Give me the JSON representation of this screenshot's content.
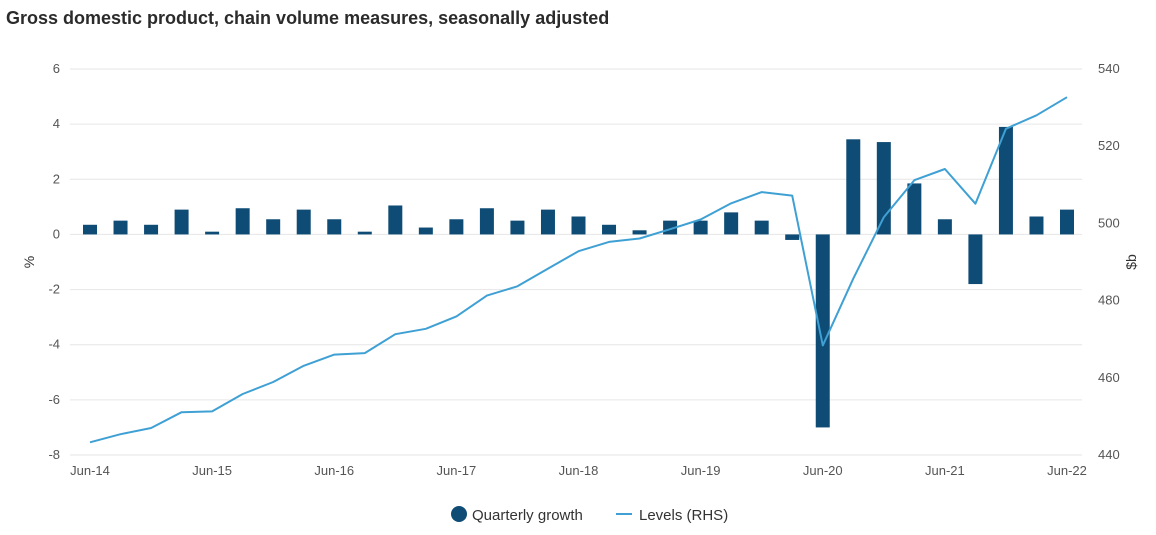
{
  "chart_data": {
    "type": "bar+line",
    "title": "Gross domestic product, chain volume measures, seasonally adjusted",
    "ylabel_left": "%",
    "ylabel_right": "$b",
    "ylim_left": [
      -8,
      6
    ],
    "ylim_right": [
      440,
      540
    ],
    "yticks_left": [
      "6",
      "4",
      "2",
      "0",
      "-2",
      "-4",
      "-6",
      "-8"
    ],
    "yticks_right": [
      "540",
      "520",
      "500",
      "480",
      "460",
      "440"
    ],
    "x_tick_labels": [
      "Jun-14",
      "Jun-15",
      "Jun-16",
      "Jun-17",
      "Jun-18",
      "Jun-19",
      "Jun-20",
      "Jun-21",
      "Jun-22"
    ],
    "grid": true,
    "legend_position": "bottom-center",
    "colors": {
      "bars": "#0f4c75",
      "line": "#3fa0d4",
      "grid": "#e6e6e6"
    },
    "series": [
      {
        "name": "Quarterly growth",
        "type": "bar",
        "axis": "left",
        "values": [
          0.35,
          0.5,
          0.35,
          0.9,
          0.1,
          0.95,
          0.55,
          0.9,
          0.55,
          0.1,
          1.05,
          0.25,
          0.55,
          0.95,
          0.5,
          0.9,
          0.65,
          0.35,
          0.15,
          0.5,
          0.5,
          0.8,
          0.5,
          -0.2,
          -7.0,
          3.45,
          3.35,
          1.85,
          0.55,
          -1.8,
          3.9,
          0.65,
          0.9
        ]
      },
      {
        "name": "Levels (RHS)",
        "type": "line",
        "axis": "right",
        "values": [
          443.3,
          445.4,
          447.0,
          451.1,
          451.3,
          455.8,
          458.9,
          463.1,
          466.0,
          466.4,
          471.3,
          472.7,
          475.9,
          481.3,
          483.7,
          488.3,
          492.8,
          495.2,
          496.1,
          498.5,
          501.0,
          505.2,
          508.1,
          507.2,
          468.4,
          485.7,
          501.6,
          511.2,
          514.1,
          505.1,
          524.5,
          528.0,
          532.7
        ]
      }
    ]
  }
}
